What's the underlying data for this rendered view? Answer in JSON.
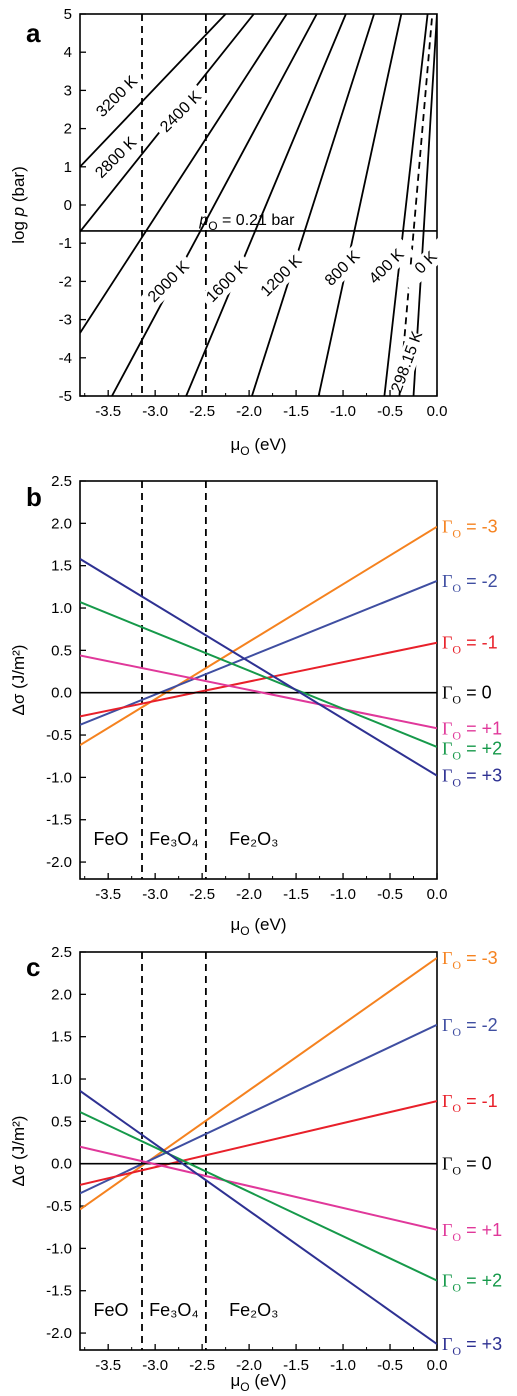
{
  "chart_data": [
    {
      "panel": "a",
      "type": "line",
      "xlabel": "μO (eV)",
      "ylabel": "log p (bar)",
      "xlim": [
        -3.8,
        0.0
      ],
      "ylim": [
        -5,
        5
      ],
      "xticks": [
        "-3.5",
        "-3.0",
        "-2.5",
        "-2.0",
        "-1.5",
        "-1.0",
        "-0.5",
        "0.0"
      ],
      "yticks": [
        "-5",
        "-4",
        "-3",
        "-2",
        "-1",
        "0",
        "1",
        "2",
        "3",
        "4",
        "5"
      ],
      "series": [
        {
          "name": "3200 K",
          "x": [
            -3.8,
            -2.25
          ],
          "y": [
            1.0,
            5.0
          ]
        },
        {
          "name": "2800 K",
          "x": [
            -3.8,
            -1.95
          ],
          "y": [
            -0.7,
            5.0
          ]
        },
        {
          "name": "2400 K",
          "x": [
            -3.8,
            -1.6
          ],
          "y": [
            -3.35,
            5.0
          ]
        },
        {
          "name": "2000 K",
          "x": [
            -3.46,
            -1.28
          ],
          "y": [
            -5.0,
            5.0
          ]
        },
        {
          "name": "1600 K",
          "x": [
            -2.67,
            -0.97
          ],
          "y": [
            -5.0,
            5.0
          ]
        },
        {
          "name": "1200 K",
          "x": [
            -1.97,
            -0.67
          ],
          "y": [
            -5.0,
            5.0
          ]
        },
        {
          "name": "800 K",
          "x": [
            -1.26,
            -0.38
          ],
          "y": [
            -5.0,
            5.0
          ]
        },
        {
          "name": "400 K",
          "x": [
            -0.56,
            -0.1
          ],
          "y": [
            -5.0,
            5.0
          ]
        },
        {
          "name": "298.15 K",
          "x": [
            -0.4,
            -0.05
          ],
          "y": [
            -5.0,
            5.0
          ],
          "style": "dashed"
        },
        {
          "name": "0 K",
          "x": [
            -0.25,
            0.0
          ],
          "y": [
            -5.0,
            5.0
          ]
        }
      ],
      "vlines": [
        -3.14,
        -2.46
      ],
      "hline": {
        "y": -0.68,
        "label": "pO = 0.21 bar"
      },
      "labels": [
        "3200 K",
        "2800 K",
        "2400 K",
        "2000 K",
        "1600 K",
        "1200 K",
        "800 K",
        "400 K",
        "0 K",
        "298.15 K"
      ]
    },
    {
      "panel": "b",
      "type": "line",
      "xlabel": "μO (eV)",
      "ylabel": "Δσ (J/m²)",
      "xlim": [
        -3.8,
        0.0
      ],
      "ylim": [
        -2.2,
        2.5
      ],
      "xticks": [
        "-3.5",
        "-3.0",
        "-2.5",
        "-2.0",
        "-1.5",
        "-1.0",
        "-0.5",
        "0.0"
      ],
      "yticks": [
        "-2.0",
        "-1.5",
        "-1.0",
        "-0.5",
        "0.0",
        "0.5",
        "1.0",
        "1.5",
        "2.0",
        "2.5"
      ],
      "vlines": [
        -3.14,
        -2.46
      ],
      "regions": [
        "FeO",
        "Fe₃O₄",
        "Fe₂O₃"
      ],
      "series": [
        {
          "name": "ΓO = -3",
          "color": "#f5821f",
          "x": [
            -3.8,
            0.0
          ],
          "y": [
            -0.62,
            1.96
          ]
        },
        {
          "name": "ΓO = -2",
          "color": "#3f4ea1",
          "x": [
            -3.8,
            0.0
          ],
          "y": [
            -0.38,
            1.32
          ]
        },
        {
          "name": "ΓO = -1",
          "color": "#e8202a",
          "x": [
            -3.8,
            0.0
          ],
          "y": [
            -0.28,
            0.59
          ]
        },
        {
          "name": "ΓO = 0",
          "color": "#000000",
          "x": [
            -3.8,
            0.0
          ],
          "y": [
            0.0,
            0.0
          ]
        },
        {
          "name": "ΓO = +1",
          "color": "#e0389a",
          "x": [
            -3.8,
            0.0
          ],
          "y": [
            0.44,
            -0.42
          ]
        },
        {
          "name": "ΓO = +2",
          "color": "#16994a",
          "x": [
            -3.8,
            0.0
          ],
          "y": [
            1.07,
            -0.64
          ]
        },
        {
          "name": "ΓO = +3",
          "color": "#2e3192",
          "x": [
            -3.8,
            0.0
          ],
          "y": [
            1.58,
            -0.98
          ]
        }
      ]
    },
    {
      "panel": "c",
      "type": "line",
      "xlabel": "μO (eV)",
      "ylabel": "Δσ (J/m²)",
      "xlim": [
        -3.8,
        0.0
      ],
      "ylim": [
        -2.2,
        2.5
      ],
      "xticks": [
        "-3.5",
        "-3.0",
        "-2.5",
        "-2.0",
        "-1.5",
        "-1.0",
        "-0.5",
        "0.0"
      ],
      "yticks": [
        "-2.0",
        "-1.5",
        "-1.0",
        "-0.5",
        "0.0",
        "0.5",
        "1.0",
        "1.5",
        "2.0",
        "2.5"
      ],
      "vlines": [
        -3.14,
        -2.46
      ],
      "regions": [
        "FeO",
        "Fe₃O₄",
        "Fe₂O₃"
      ],
      "series": [
        {
          "name": "ΓO = -3",
          "color": "#f5821f",
          "x": [
            -3.8,
            0.0
          ],
          "y": [
            -0.54,
            2.43
          ]
        },
        {
          "name": "ΓO = -2",
          "color": "#3f4ea1",
          "x": [
            -3.8,
            0.0
          ],
          "y": [
            -0.35,
            1.64
          ]
        },
        {
          "name": "ΓO = -1",
          "color": "#e8202a",
          "x": [
            -3.8,
            0.0
          ],
          "y": [
            -0.25,
            0.74
          ]
        },
        {
          "name": "ΓO = 0",
          "color": "#000000",
          "x": [
            -3.8,
            0.0
          ],
          "y": [
            0.0,
            0.0
          ]
        },
        {
          "name": "ΓO = +1",
          "color": "#e0389a",
          "x": [
            -3.8,
            0.0
          ],
          "y": [
            0.2,
            -0.78
          ]
        },
        {
          "name": "ΓO = +2",
          "color": "#16994a",
          "x": [
            -3.8,
            0.0
          ],
          "y": [
            0.61,
            -1.38
          ]
        },
        {
          "name": "ΓO = +3",
          "color": "#2e3192",
          "x": [
            -3.8,
            0.0
          ],
          "y": [
            0.86,
            -2.13
          ]
        }
      ]
    }
  ]
}
